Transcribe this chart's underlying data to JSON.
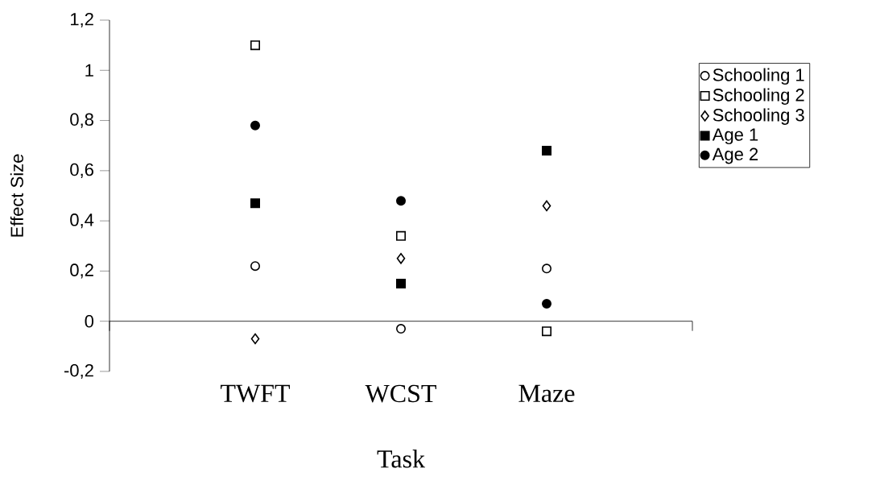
{
  "chart_data": {
    "type": "scatter",
    "xlabel": "Task",
    "ylabel": "Effect Size",
    "categories": [
      "TWFT",
      "WCST",
      "Maze"
    ],
    "ylim": [
      -0.2,
      1.2
    ],
    "yticks": [
      {
        "value": -0.2,
        "label": "-0,2"
      },
      0,
      {
        "value": 0.2,
        "label": "0,2"
      },
      {
        "value": 0.4,
        "label": "0,4"
      },
      {
        "value": 0.6,
        "label": "0,6"
      },
      {
        "value": 0.8,
        "label": "0,8"
      },
      1,
      {
        "value": 1.2,
        "label": "1,2"
      }
    ],
    "legend": "right",
    "grid": false,
    "series": [
      {
        "name": "Schooling 1",
        "color": "#ffffff",
        "marker": "circle",
        "values": [
          0.22,
          -0.03,
          0.21
        ]
      },
      {
        "name": "Schooling 2",
        "color": "#ffffff",
        "marker": "square",
        "values": [
          1.1,
          0.34,
          -0.04
        ]
      },
      {
        "name": "Schooling 3",
        "color": "#ffffff",
        "marker": "diamond",
        "values": [
          -0.07,
          0.25,
          0.46
        ]
      },
      {
        "name": "Age 1",
        "color": "#000000",
        "marker": "square",
        "values": [
          0.47,
          0.15,
          0.68
        ]
      },
      {
        "name": "Age 2",
        "color": "#000000",
        "marker": "circle",
        "values": [
          0.78,
          0.48,
          0.07
        ]
      }
    ]
  }
}
